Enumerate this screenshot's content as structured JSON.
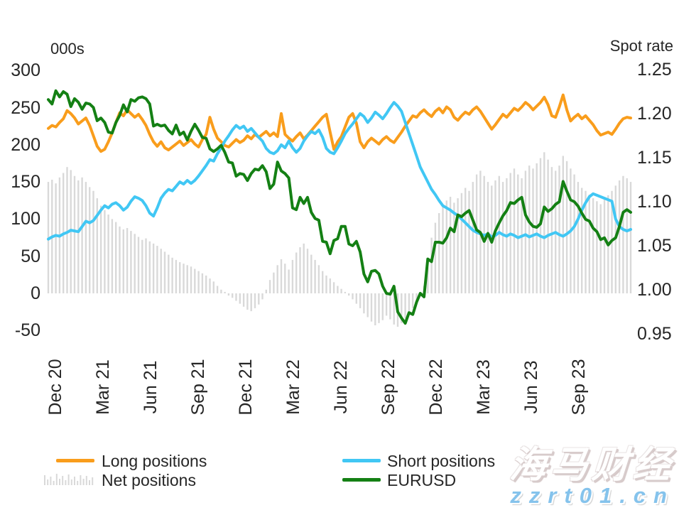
{
  "chart_data": {
    "type": "line+bar",
    "frequency": "weekly",
    "x_tick_labels": [
      "Dec 20",
      "Mar 21",
      "Jun 21",
      "Sep 21",
      "Dec 21",
      "Mar 22",
      "Jun 22",
      "Sep 22",
      "Dec 22",
      "Mar 23",
      "Jun 23",
      "Sep 23"
    ],
    "left_axis": {
      "title": "000s",
      "ticks": [
        300,
        250,
        200,
        150,
        100,
        50,
        0,
        -50
      ],
      "tick_labels": [
        "300",
        "250",
        "200",
        "150",
        "100",
        "50",
        "0",
        "-50"
      ],
      "range": [
        -75,
        310
      ]
    },
    "right_axis": {
      "title": "Spot rate",
      "ticks": [
        1.25,
        1.2,
        1.15,
        1.1,
        1.05,
        1.0,
        0.95
      ],
      "tick_labels": [
        "1.25",
        "1.20",
        "1.15",
        "1.10",
        "1.05",
        "1.00",
        "0.95"
      ],
      "range": [
        0.93,
        1.26
      ]
    },
    "grid": "off",
    "legend_position": "bottom",
    "series": [
      {
        "id": "long-positions",
        "name": "Long positions",
        "type": "line",
        "axis": "left",
        "color": "#f99d1c",
        "values": [
          222,
          226,
          224,
          230,
          235,
          246,
          242,
          236,
          228,
          232,
          236,
          226,
          212,
          198,
          191,
          194,
          204,
          216,
          230,
          243,
          239,
          247,
          242,
          237,
          241,
          234,
          226,
          214,
          204,
          198,
          204,
          196,
          193,
          197,
          201,
          205,
          199,
          203,
          207,
          201,
          197,
          207,
          214,
          237,
          221,
          209,
          204,
          199,
          197,
          202,
          207,
          203,
          206,
          212,
          208,
          214,
          210,
          214,
          218,
          212,
          216,
          211,
          242,
          214,
          209,
          205,
          211,
          216,
          208,
          213,
          219,
          225,
          231,
          237,
          241,
          217,
          194,
          204,
          211,
          224,
          237,
          242,
          229,
          204,
          196,
          204,
          209,
          205,
          201,
          207,
          211,
          206,
          203,
          210,
          217,
          225,
          232,
          239,
          237,
          243,
          247,
          242,
          238,
          245,
          249,
          243,
          251,
          247,
          237,
          233,
          239,
          244,
          241,
          247,
          251,
          245,
          237,
          229,
          221,
          227,
          234,
          241,
          237,
          243,
          249,
          246,
          251,
          257,
          253,
          247,
          252,
          257,
          264,
          254,
          239,
          237,
          251,
          267,
          247,
          232,
          237,
          241,
          235,
          239,
          233,
          227,
          219,
          213,
          215,
          217,
          214,
          221,
          229,
          235,
          237,
          236
        ]
      },
      {
        "id": "short-positions",
        "name": "Short positions",
        "type": "line",
        "axis": "left",
        "color": "#41c7f4",
        "values": [
          73,
          76,
          78,
          77,
          80,
          82,
          85,
          84,
          83,
          90,
          97,
          95,
          98,
          105,
          112,
          118,
          115,
          120,
          122,
          118,
          112,
          116,
          124,
          130,
          128,
          125,
          118,
          108,
          104,
          115,
          128,
          135,
          140,
          138,
          144,
          150,
          147,
          152,
          148,
          152,
          158,
          165,
          172,
          180,
          178,
          188,
          196,
          205,
          212,
          220,
          226,
          222,
          225,
          218,
          222,
          216,
          210,
          205,
          195,
          190,
          188,
          192,
          200,
          196,
          205,
          196,
          190,
          195,
          205,
          212,
          218,
          215,
          220,
          210,
          195,
          190,
          188,
          196,
          205,
          215,
          222,
          228,
          235,
          242,
          238,
          230,
          236,
          244,
          240,
          235,
          242,
          250,
          257,
          252,
          245,
          230,
          215,
          200,
          185,
          170,
          160,
          150,
          140,
          133,
          125,
          118,
          115,
          112,
          108,
          105,
          100,
          95,
          90,
          85,
          82,
          80,
          78,
          80,
          76,
          78,
          82,
          79,
          77,
          80,
          78,
          75,
          77,
          79,
          76,
          78,
          80,
          77,
          75,
          78,
          80,
          82,
          79,
          77,
          80,
          84,
          90,
          100,
          112,
          122,
          130,
          134,
          132,
          130,
          128,
          126,
          124,
          100,
          90,
          86,
          84,
          86
        ]
      },
      {
        "id": "net-positions",
        "name": "Net positions",
        "type": "bar",
        "axis": "left",
        "color": "#d9d9d9",
        "values": [
          150,
          153,
          148,
          156,
          162,
          170,
          166,
          158,
          152,
          156,
          150,
          143,
          138,
          128,
          118,
          112,
          106,
          100,
          96,
          90,
          86,
          88,
          84,
          80,
          76,
          72,
          74,
          70,
          67,
          64,
          60,
          56,
          52,
          48,
          45,
          42,
          40,
          38,
          36,
          33,
          30,
          27,
          24,
          20,
          16,
          10,
          5,
          2,
          -3,
          -6,
          -10,
          -14,
          -18,
          -22,
          -24,
          -20,
          -15,
          -8,
          5,
          18,
          28,
          38,
          46,
          40,
          32,
          45,
          55,
          62,
          67,
          60,
          52,
          45,
          38,
          30,
          24,
          20,
          15,
          10,
          6,
          2,
          -3,
          -8,
          -14,
          -20,
          -27,
          -32,
          -38,
          -43,
          -40,
          -36,
          -30,
          -35,
          -42,
          -45,
          -40,
          -34,
          -28,
          -20,
          -12,
          -4,
          10,
          35,
          75,
          95,
          108,
          118,
          125,
          130,
          122,
          128,
          135,
          142,
          138,
          150,
          160,
          165,
          158,
          150,
          145,
          152,
          158,
          150,
          155,
          162,
          168,
          160,
          155,
          165,
          172,
          168,
          175,
          182,
          190,
          180,
          170,
          165,
          172,
          185,
          178,
          168,
          160,
          150,
          142,
          138,
          133,
          128,
          124,
          120,
          126,
          132,
          138,
          145,
          152,
          158,
          155,
          150
        ]
      },
      {
        "id": "eurusd",
        "name": "EURUSD",
        "type": "line",
        "axis": "right",
        "color": "#148014",
        "values": [
          1.216,
          1.211,
          1.226,
          1.219,
          1.225,
          1.222,
          1.208,
          1.217,
          1.213,
          1.205,
          1.212,
          1.211,
          1.207,
          1.192,
          1.195,
          1.19,
          1.179,
          1.178,
          1.19,
          1.198,
          1.21,
          1.202,
          1.216,
          1.214,
          1.218,
          1.219,
          1.217,
          1.211,
          1.186,
          1.188,
          1.186,
          1.187,
          1.181,
          1.177,
          1.187,
          1.176,
          1.179,
          1.17,
          1.18,
          1.188,
          1.181,
          1.173,
          1.172,
          1.16,
          1.157,
          1.16,
          1.164,
          1.156,
          1.145,
          1.144,
          1.129,
          1.132,
          1.131,
          1.124,
          1.132,
          1.137,
          1.136,
          1.141,
          1.134,
          1.115,
          1.12,
          1.145,
          1.135,
          1.132,
          1.127,
          1.093,
          1.091,
          1.105,
          1.098,
          1.105,
          1.088,
          1.081,
          1.079,
          1.055,
          1.054,
          1.041,
          1.056,
          1.058,
          1.072,
          1.072,
          1.052,
          1.05,
          1.055,
          1.043,
          1.018,
          1.009,
          1.021,
          1.022,
          1.018,
          1.004,
          0.996,
          0.995,
          1.004,
          0.975,
          0.968,
          0.962,
          0.974,
          0.972,
          0.986,
          0.996,
          0.992,
          1.035,
          1.032,
          1.054,
          1.054,
          1.053,
          1.059,
          1.07,
          1.066,
          1.085,
          1.083,
          1.087,
          1.09,
          1.079,
          1.068,
          1.065,
          1.055,
          1.064,
          1.054,
          1.067,
          1.076,
          1.084,
          1.09,
          1.099,
          1.098,
          1.102,
          1.105,
          1.085,
          1.077,
          1.072,
          1.071,
          1.075,
          1.094,
          1.089,
          1.092,
          1.097,
          1.1,
          1.123,
          1.112,
          1.102,
          1.1,
          1.095,
          1.087,
          1.08,
          1.078,
          1.07,
          1.066,
          1.057,
          1.059,
          1.051,
          1.056,
          1.059,
          1.072,
          1.088,
          1.091,
          1.088
        ]
      }
    ]
  },
  "legend": {
    "long_label": "Long positions",
    "net_label": "Net positions",
    "short_label": "Short positions",
    "eurusd_label": "EURUSD"
  },
  "watermark": {
    "brand": "海马财经",
    "site": "zzrt01.cn"
  },
  "colors": {
    "long": "#f99d1c",
    "short": "#41c7f4",
    "net": "#d9d9d9",
    "eurusd": "#148014",
    "text": "#262626",
    "watermark_url": "#85c3ec"
  }
}
